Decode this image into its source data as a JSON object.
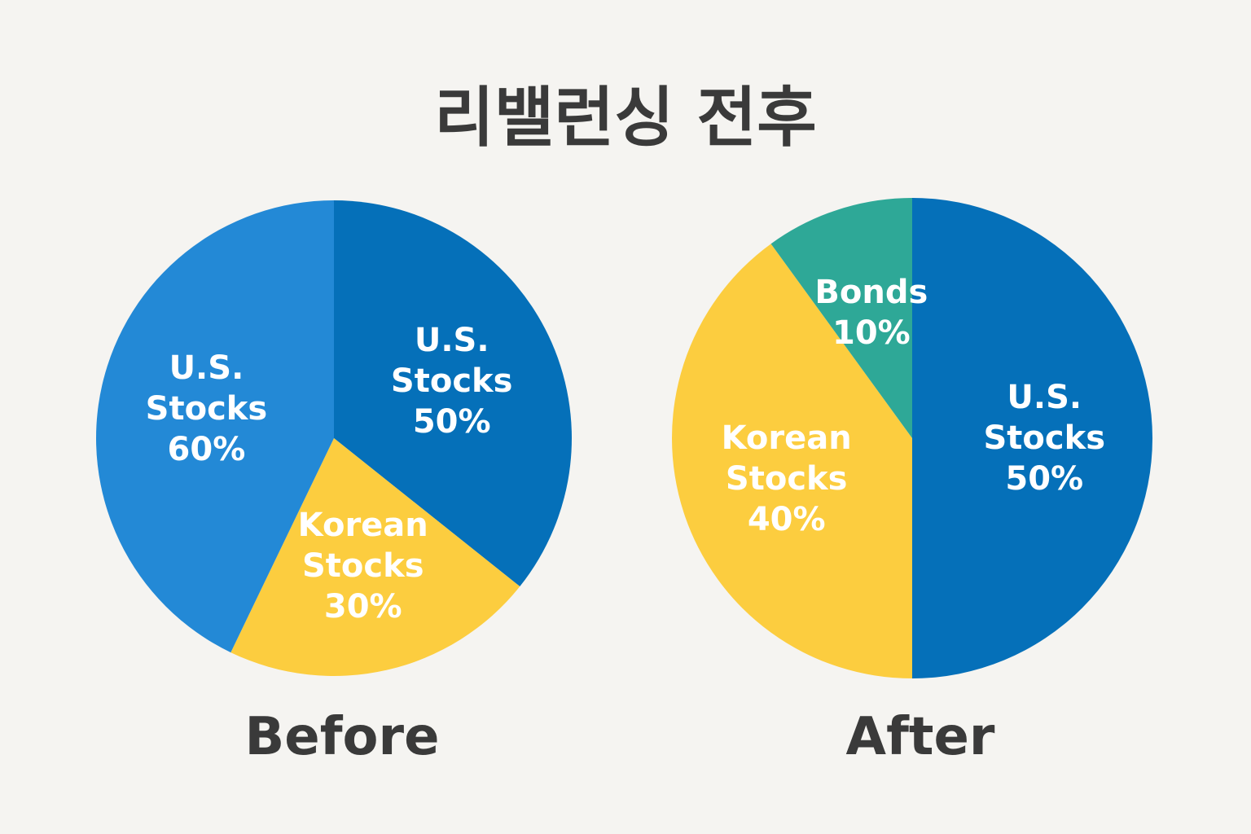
{
  "title": "리밸런싱 전후",
  "chart_data": [
    {
      "type": "pie",
      "title": "Before",
      "categories": [
        "U.S. Stocks",
        "Korean Stocks",
        "U.S. Stocks"
      ],
      "values": [
        50,
        30,
        60
      ],
      "value_labels": [
        "50%",
        "30%",
        "60%"
      ],
      "colors": [
        "#0570b9",
        "#fccd3f",
        "#2389d6"
      ]
    },
    {
      "type": "pie",
      "title": "After",
      "categories": [
        "U.S. Stocks",
        "Korean Stocks",
        "Bonds"
      ],
      "values": [
        50,
        40,
        10
      ],
      "value_labels": [
        "50%",
        "40%",
        "10%"
      ],
      "colors": [
        "#0570b9",
        "#fccd3f",
        "#2ea897"
      ]
    }
  ]
}
